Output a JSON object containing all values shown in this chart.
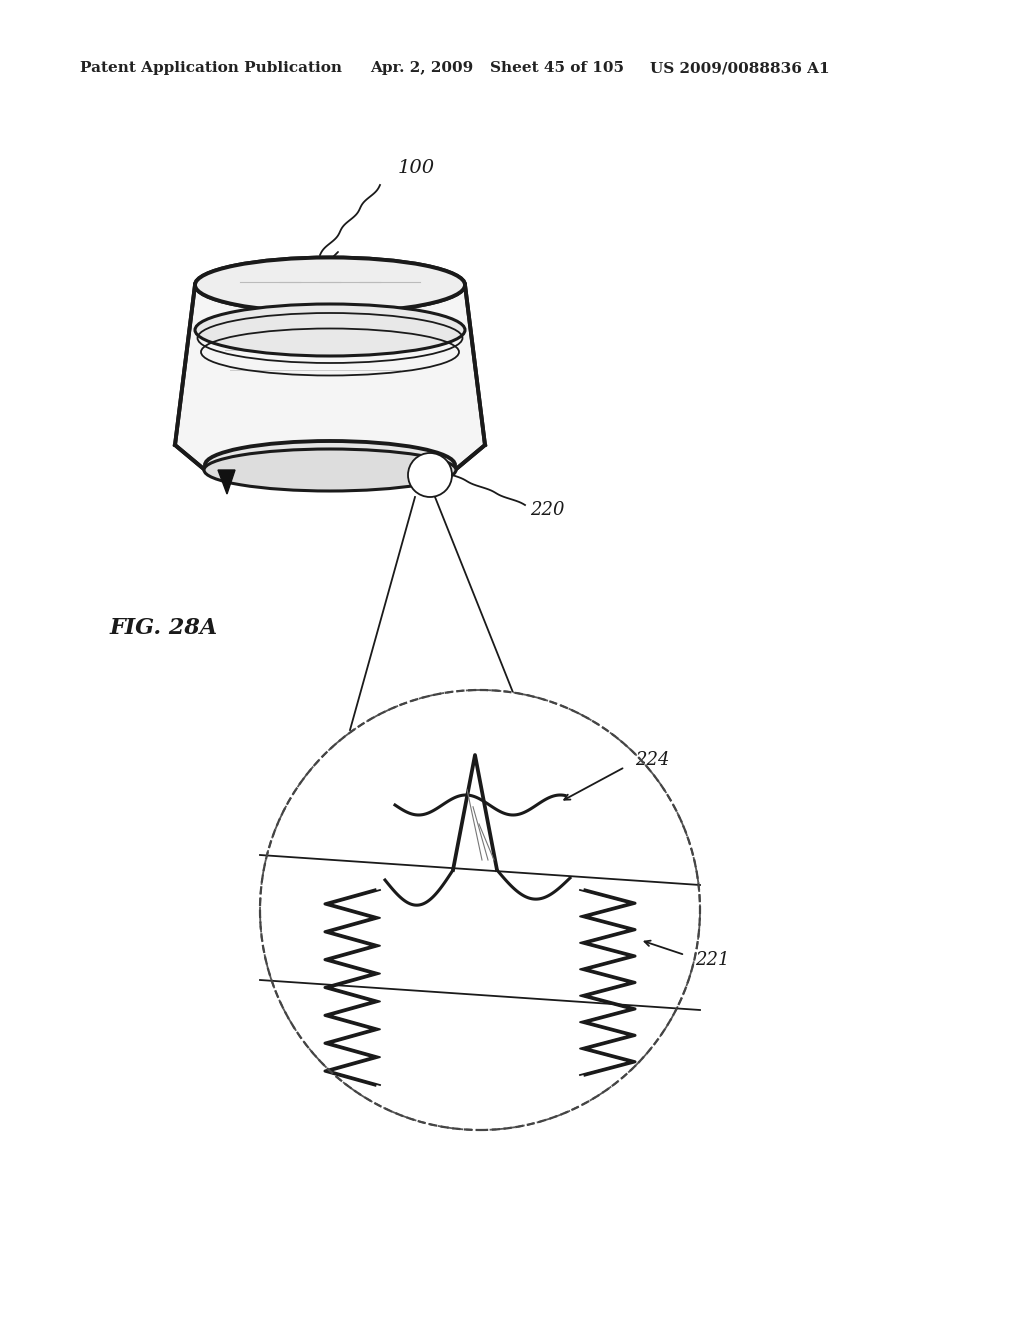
{
  "bg_color": "#ffffff",
  "header_text": "Patent Application Publication",
  "header_date": "Apr. 2, 2009",
  "header_sheet": "Sheet 45 of 105",
  "header_patent": "US 2009/0088836 A1",
  "fig_label": "FIG. 28A",
  "label_100": "100",
  "label_220": "220",
  "label_224": "224",
  "label_221": "221"
}
